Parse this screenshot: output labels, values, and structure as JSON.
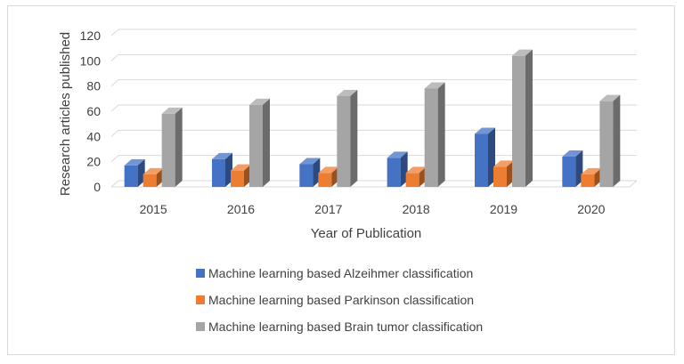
{
  "chart_data": {
    "type": "bar",
    "title": "",
    "xlabel": "Year of Publication",
    "ylabel": "Research articles published",
    "ylim": [
      0,
      120
    ],
    "yticks": [
      0,
      20,
      40,
      60,
      80,
      100,
      120
    ],
    "categories": [
      "2015",
      "2016",
      "2017",
      "2018",
      "2019",
      "2020"
    ],
    "series": [
      {
        "name": "Machine learning based Alzeihmer classification",
        "color": "#4472C4",
        "values": [
          17,
          22,
          18,
          23,
          42,
          24
        ]
      },
      {
        "name": "Machine learning based Parkinson classification",
        "color": "#ED7D31",
        "values": [
          10,
          13,
          11,
          11,
          16,
          10
        ]
      },
      {
        "name": "Machine learning based Brain tumor classification",
        "color": "#A5A5A5",
        "values": [
          58,
          65,
          72,
          78,
          104,
          68
        ]
      }
    ],
    "grid": true,
    "legend_position": "bottom",
    "style": "3d-clustered-column"
  }
}
